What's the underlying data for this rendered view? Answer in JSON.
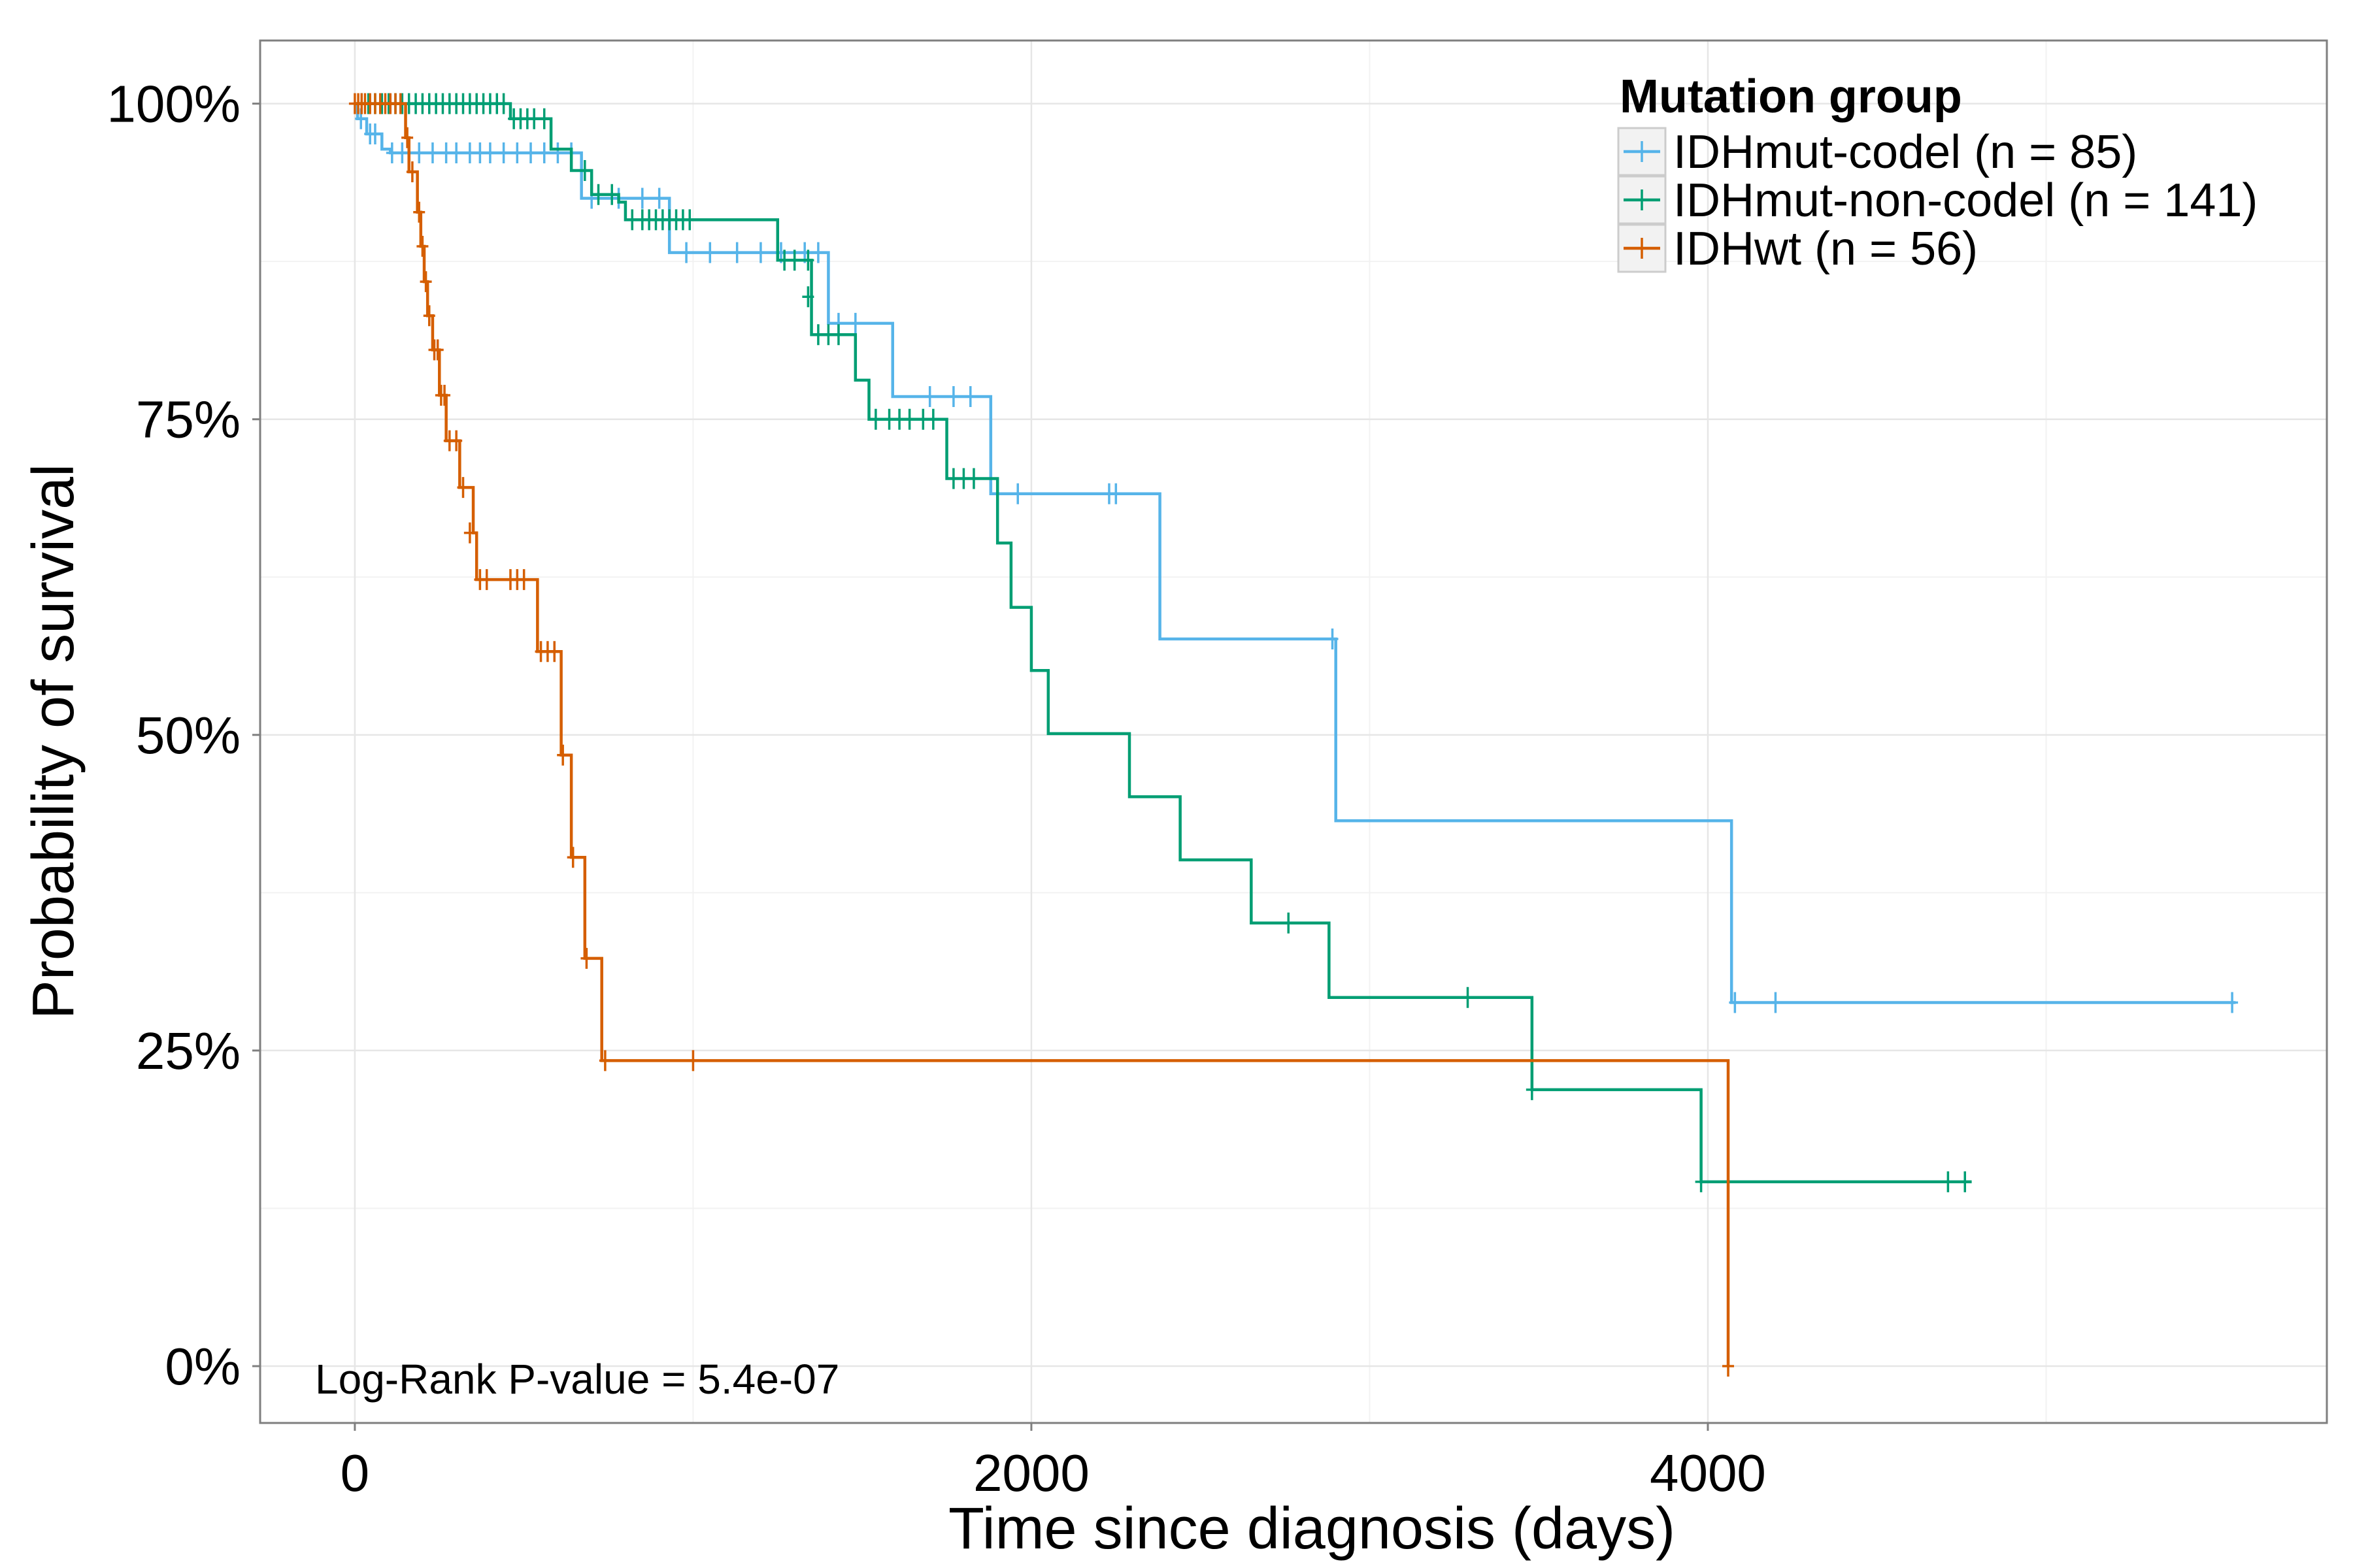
{
  "chart_data": {
    "type": "line",
    "xlabel": "Time since diagnosis (days)",
    "ylabel": "Probability of survival",
    "xlim": [
      -280,
      5830
    ],
    "ylim": [
      -0.045,
      1.05
    ],
    "x_ticks": [
      0,
      2000,
      4000
    ],
    "x_tick_labels": [
      "0",
      "2000",
      "4000"
    ],
    "y_ticks": [
      0,
      0.25,
      0.5,
      0.75,
      1.0
    ],
    "y_tick_labels": [
      "0%",
      "25%",
      "50%",
      "75%",
      "100%"
    ],
    "grid": true,
    "legend": {
      "title": "Mutation group",
      "placement": "top-right"
    },
    "annotation": "Log-Rank P-value = 5.4e-07",
    "series": [
      {
        "name": "IDHmut-codel (n = 85)",
        "color": "#56B4E9",
        "steps": [
          [
            0,
            1.0
          ],
          [
            8,
            0.988
          ],
          [
            35,
            0.976
          ],
          [
            80,
            0.964
          ],
          [
            105,
            0.961
          ],
          [
            670,
            0.925
          ],
          [
            930,
            0.882
          ],
          [
            1400,
            0.826
          ],
          [
            1590,
            0.768
          ],
          [
            1880,
            0.691
          ],
          [
            2380,
            0.576
          ],
          [
            2900,
            0.432
          ],
          [
            4070,
            0.288
          ],
          [
            5560,
            0.288
          ]
        ],
        "censored": [
          [
            18,
            0.988
          ],
          [
            45,
            0.976
          ],
          [
            60,
            0.976
          ],
          [
            110,
            0.961
          ],
          [
            140,
            0.961
          ],
          [
            160,
            0.961
          ],
          [
            190,
            0.961
          ],
          [
            230,
            0.961
          ],
          [
            270,
            0.961
          ],
          [
            300,
            0.961
          ],
          [
            340,
            0.961
          ],
          [
            370,
            0.961
          ],
          [
            400,
            0.961
          ],
          [
            440,
            0.961
          ],
          [
            480,
            0.961
          ],
          [
            520,
            0.961
          ],
          [
            560,
            0.961
          ],
          [
            600,
            0.961
          ],
          [
            640,
            0.961
          ],
          [
            700,
            0.925
          ],
          [
            780,
            0.925
          ],
          [
            850,
            0.925
          ],
          [
            900,
            0.925
          ],
          [
            980,
            0.882
          ],
          [
            1050,
            0.882
          ],
          [
            1130,
            0.882
          ],
          [
            1200,
            0.882
          ],
          [
            1260,
            0.882
          ],
          [
            1330,
            0.882
          ],
          [
            1370,
            0.882
          ],
          [
            1430,
            0.826
          ],
          [
            1480,
            0.826
          ],
          [
            1700,
            0.768
          ],
          [
            1770,
            0.768
          ],
          [
            1820,
            0.768
          ],
          [
            1900,
            0.691
          ],
          [
            1960,
            0.691
          ],
          [
            2230,
            0.691
          ],
          [
            2250,
            0.691
          ],
          [
            2890,
            0.576
          ],
          [
            4080,
            0.288
          ],
          [
            4200,
            0.288
          ],
          [
            5550,
            0.288
          ]
        ]
      },
      {
        "name": "IDHmut-non-codel (n = 141)",
        "color": "#009E73",
        "steps": [
          [
            0,
            1.0
          ],
          [
            460,
            0.988
          ],
          [
            580,
            0.964
          ],
          [
            640,
            0.947
          ],
          [
            700,
            0.928
          ],
          [
            780,
            0.922
          ],
          [
            800,
            0.908
          ],
          [
            1250,
            0.876
          ],
          [
            1350,
            0.817
          ],
          [
            1480,
            0.781
          ],
          [
            1520,
            0.75
          ],
          [
            1750,
            0.703
          ],
          [
            1900,
            0.652
          ],
          [
            1940,
            0.601
          ],
          [
            2000,
            0.551
          ],
          [
            2050,
            0.501
          ],
          [
            2290,
            0.451
          ],
          [
            2440,
            0.401
          ],
          [
            2650,
            0.351
          ],
          [
            2880,
            0.292
          ],
          [
            3480,
            0.219
          ],
          [
            3980,
            0.146
          ],
          [
            4780,
            0.146
          ]
        ],
        "censored": [
          [
            20,
            1.0
          ],
          [
            40,
            1.0
          ],
          [
            60,
            1.0
          ],
          [
            80,
            1.0
          ],
          [
            100,
            1.0
          ],
          [
            120,
            1.0
          ],
          [
            140,
            1.0
          ],
          [
            160,
            1.0
          ],
          [
            180,
            1.0
          ],
          [
            200,
            1.0
          ],
          [
            220,
            1.0
          ],
          [
            240,
            1.0
          ],
          [
            260,
            1.0
          ],
          [
            280,
            1.0
          ],
          [
            300,
            1.0
          ],
          [
            320,
            1.0
          ],
          [
            340,
            1.0
          ],
          [
            360,
            1.0
          ],
          [
            380,
            1.0
          ],
          [
            400,
            1.0
          ],
          [
            420,
            1.0
          ],
          [
            440,
            1.0
          ],
          [
            470,
            0.988
          ],
          [
            490,
            0.988
          ],
          [
            510,
            0.988
          ],
          [
            530,
            0.988
          ],
          [
            560,
            0.988
          ],
          [
            680,
            0.947
          ],
          [
            720,
            0.928
          ],
          [
            760,
            0.928
          ],
          [
            820,
            0.908
          ],
          [
            850,
            0.908
          ],
          [
            870,
            0.908
          ],
          [
            890,
            0.908
          ],
          [
            910,
            0.908
          ],
          [
            930,
            0.908
          ],
          [
            950,
            0.908
          ],
          [
            970,
            0.908
          ],
          [
            990,
            0.908
          ],
          [
            1270,
            0.876
          ],
          [
            1300,
            0.876
          ],
          [
            1340,
            0.876
          ],
          [
            1340,
            0.847
          ],
          [
            1370,
            0.817
          ],
          [
            1400,
            0.817
          ],
          [
            1430,
            0.817
          ],
          [
            1540,
            0.75
          ],
          [
            1580,
            0.75
          ],
          [
            1610,
            0.75
          ],
          [
            1640,
            0.75
          ],
          [
            1680,
            0.75
          ],
          [
            1710,
            0.75
          ],
          [
            1770,
            0.703
          ],
          [
            1800,
            0.703
          ],
          [
            1830,
            0.703
          ],
          [
            2760,
            0.351
          ],
          [
            3290,
            0.292
          ],
          [
            3480,
            0.219
          ],
          [
            3980,
            0.146
          ],
          [
            4710,
            0.146
          ],
          [
            4760,
            0.146
          ]
        ]
      },
      {
        "name": "IDHwt (n = 56)",
        "color": "#D55E00",
        "steps": [
          [
            0,
            1.0
          ],
          [
            150,
            0.973
          ],
          [
            160,
            0.946
          ],
          [
            185,
            0.914
          ],
          [
            195,
            0.887
          ],
          [
            205,
            0.859
          ],
          [
            215,
            0.832
          ],
          [
            230,
            0.805
          ],
          [
            250,
            0.769
          ],
          [
            270,
            0.733
          ],
          [
            310,
            0.696
          ],
          [
            350,
            0.66
          ],
          [
            360,
            0.623
          ],
          [
            540,
            0.566
          ],
          [
            610,
            0.484
          ],
          [
            640,
            0.403
          ],
          [
            680,
            0.323
          ],
          [
            730,
            0.242
          ],
          [
            4060,
            0.0
          ]
        ],
        "censored": [
          [
            0,
            1.0
          ],
          [
            10,
            1.0
          ],
          [
            20,
            1.0
          ],
          [
            30,
            1.0
          ],
          [
            45,
            1.0
          ],
          [
            60,
            1.0
          ],
          [
            75,
            1.0
          ],
          [
            90,
            1.0
          ],
          [
            105,
            1.0
          ],
          [
            120,
            1.0
          ],
          [
            135,
            1.0
          ],
          [
            155,
            0.973
          ],
          [
            170,
            0.946
          ],
          [
            190,
            0.914
          ],
          [
            200,
            0.887
          ],
          [
            210,
            0.859
          ],
          [
            220,
            0.832
          ],
          [
            235,
            0.805
          ],
          [
            245,
            0.805
          ],
          [
            255,
            0.769
          ],
          [
            265,
            0.769
          ],
          [
            280,
            0.733
          ],
          [
            300,
            0.733
          ],
          [
            320,
            0.696
          ],
          [
            340,
            0.66
          ],
          [
            370,
            0.623
          ],
          [
            390,
            0.623
          ],
          [
            460,
            0.623
          ],
          [
            480,
            0.623
          ],
          [
            500,
            0.623
          ],
          [
            550,
            0.566
          ],
          [
            570,
            0.566
          ],
          [
            590,
            0.566
          ],
          [
            615,
            0.484
          ],
          [
            645,
            0.403
          ],
          [
            685,
            0.323
          ],
          [
            740,
            0.242
          ],
          [
            1000,
            0.242
          ],
          [
            4060,
            0.0
          ]
        ]
      }
    ]
  }
}
